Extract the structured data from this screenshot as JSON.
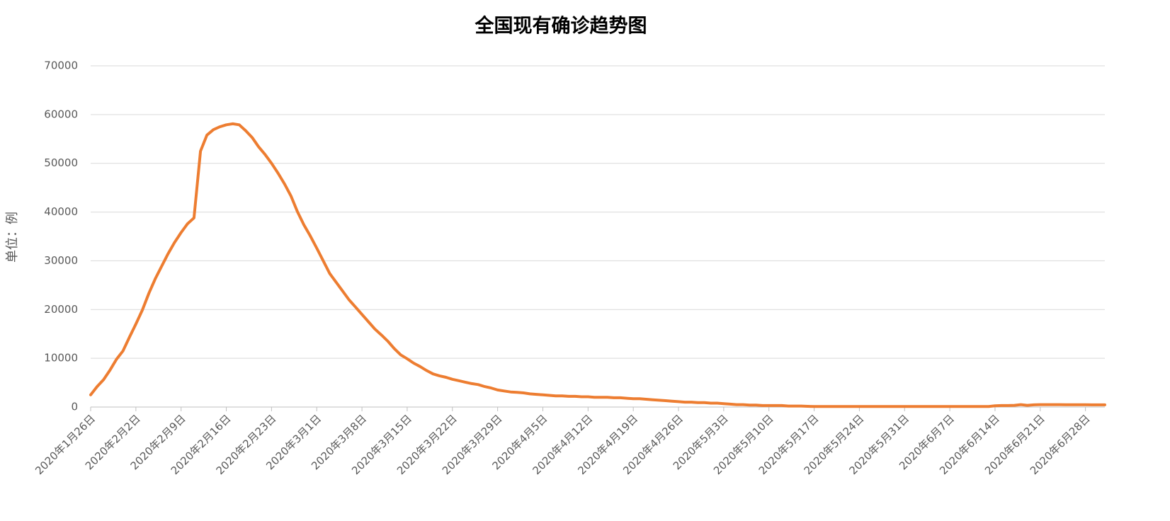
{
  "chart_data": {
    "type": "line",
    "title": "全国现有确诊趋势图",
    "y_label": "单位：例",
    "categories": [
      "2020年1月26日",
      null,
      null,
      null,
      null,
      null,
      null,
      "2020年2月2日",
      null,
      null,
      null,
      null,
      null,
      null,
      "2020年2月9日",
      null,
      null,
      null,
      null,
      null,
      null,
      "2020年2月16日",
      null,
      null,
      null,
      null,
      null,
      null,
      "2020年2月23日",
      null,
      null,
      null,
      null,
      null,
      null,
      "2020年3月1日",
      null,
      null,
      null,
      null,
      null,
      null,
      "2020年3月8日",
      null,
      null,
      null,
      null,
      null,
      null,
      "2020年3月15日",
      null,
      null,
      null,
      null,
      null,
      null,
      "2020年3月22日",
      null,
      null,
      null,
      null,
      null,
      null,
      "2020年3月29日",
      null,
      null,
      null,
      null,
      null,
      null,
      "2020年4月5日",
      null,
      null,
      null,
      null,
      null,
      null,
      "2020年4月12日",
      null,
      null,
      null,
      null,
      null,
      null,
      "2020年4月19日",
      null,
      null,
      null,
      null,
      null,
      null,
      "2020年4月26日",
      null,
      null,
      null,
      null,
      null,
      null,
      "2020年5月3日",
      null,
      null,
      null,
      null,
      null,
      null,
      "2020年5月10日",
      null,
      null,
      null,
      null,
      null,
      null,
      "2020年5月17日",
      null,
      null,
      null,
      null,
      null,
      null,
      "2020年5月24日",
      null,
      null,
      null,
      null,
      null,
      null,
      "2020年5月31日",
      null,
      null,
      null,
      null,
      null,
      null,
      "2020年6月7日",
      null,
      null,
      null,
      null,
      null,
      null,
      "2020年6月14日",
      null,
      null,
      null,
      null,
      null,
      null,
      "2020年6月21日",
      null,
      null,
      null,
      null,
      null,
      null,
      "2020年6月28日",
      null,
      null,
      null
    ],
    "values": [
      2500,
      4200,
      5600,
      7600,
      9800,
      11500,
      14300,
      17000,
      19900,
      23300,
      26300,
      28900,
      31500,
      33800,
      35800,
      37600,
      38800,
      52500,
      55800,
      56900,
      57500,
      57900,
      58100,
      57900,
      56700,
      55300,
      53400,
      51800,
      50000,
      48000,
      45800,
      43300,
      40100,
      37400,
      35100,
      32600,
      30000,
      27400,
      25600,
      23800,
      22000,
      20500,
      19000,
      17500,
      16000,
      14800,
      13500,
      12000,
      10700,
      9900,
      9000,
      8300,
      7500,
      6800,
      6400,
      6100,
      5700,
      5400,
      5100,
      4800,
      4600,
      4200,
      3900,
      3500,
      3300,
      3100,
      3000,
      2900,
      2700,
      2600,
      2500,
      2400,
      2300,
      2300,
      2200,
      2200,
      2100,
      2100,
      2000,
      2000,
      2000,
      1900,
      1900,
      1800,
      1700,
      1700,
      1600,
      1500,
      1400,
      1300,
      1200,
      1100,
      1000,
      1000,
      900,
      900,
      800,
      800,
      700,
      600,
      500,
      500,
      400,
      400,
      300,
      300,
      300,
      300,
      200,
      200,
      200,
      150,
      100,
      100,
      100,
      100,
      100,
      100,
      100,
      100,
      100,
      100,
      100,
      100,
      100,
      100,
      100,
      100,
      100,
      100,
      100,
      100,
      100,
      100,
      100,
      100,
      100,
      100,
      100,
      100,
      250,
      300,
      300,
      350,
      500,
      350,
      450,
      500,
      500,
      500,
      500,
      480,
      480,
      470,
      460,
      450,
      450,
      450
    ],
    "color": "#ed7d31",
    "ylim": [
      0,
      70000
    ],
    "yticks": [
      0,
      10000,
      20000,
      30000,
      40000,
      50000,
      60000,
      70000
    ],
    "grid": true
  }
}
